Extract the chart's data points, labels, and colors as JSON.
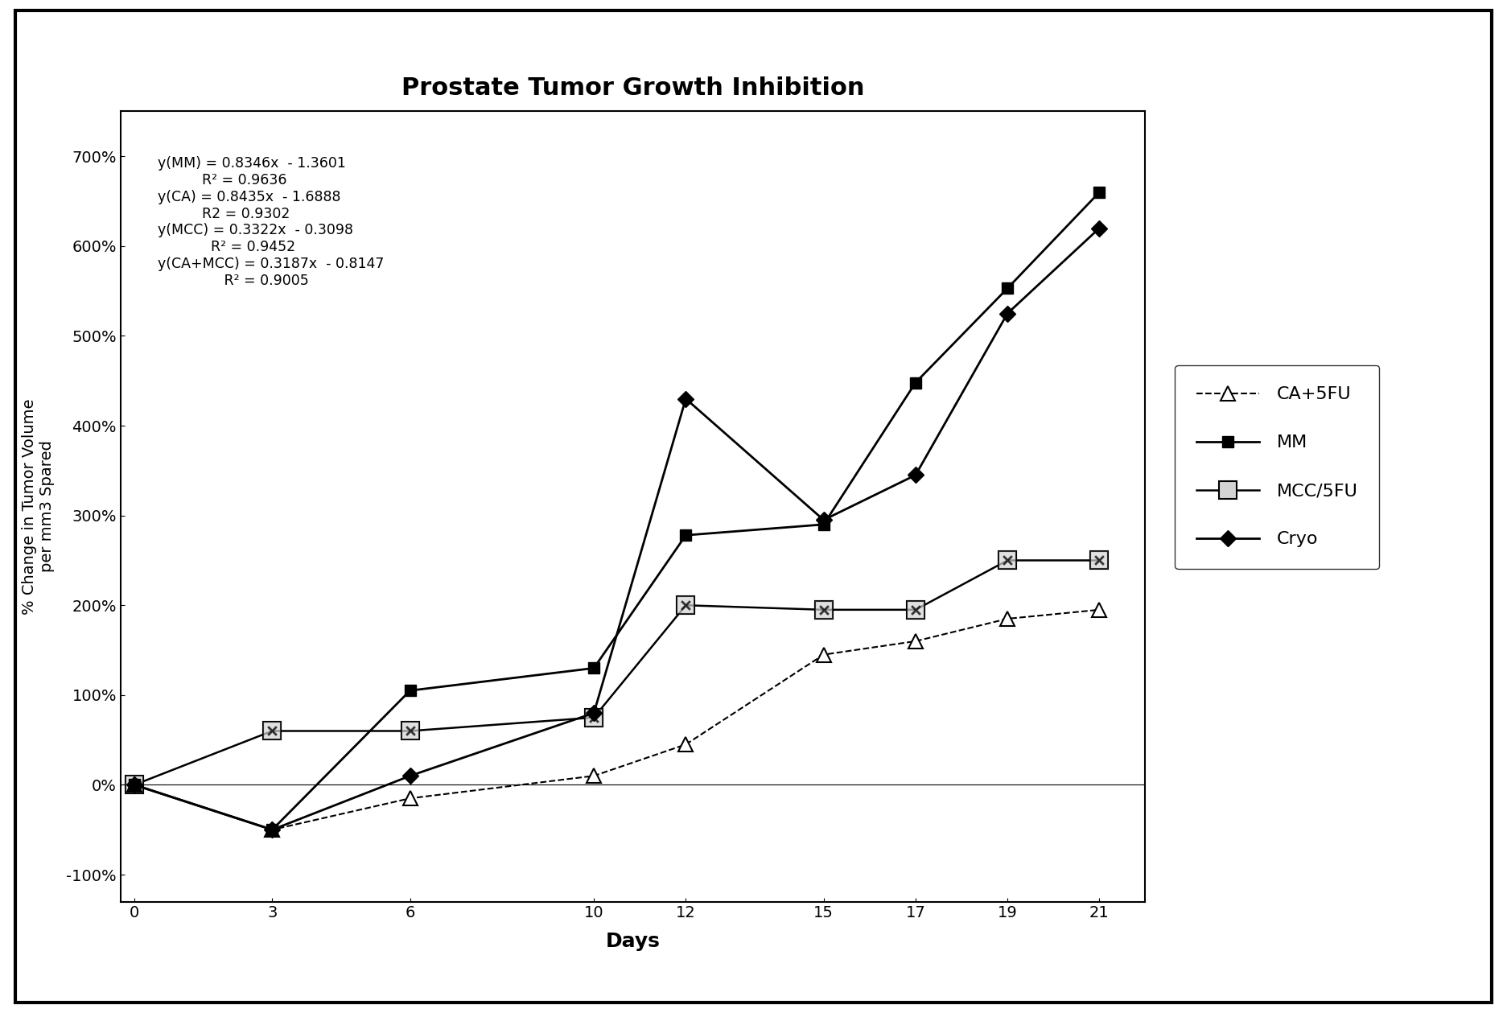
{
  "title": "Prostate Tumor Growth Inhibition",
  "xlabel": "Days",
  "ylabel": "% Change in Tumor Volume\nper mm3 Spared",
  "days": [
    0,
    3,
    6,
    10,
    12,
    15,
    17,
    19,
    21
  ],
  "MM": [
    0,
    -50,
    105,
    130,
    278,
    290,
    448,
    553,
    660
  ],
  "CA_5FU": [
    0,
    -50,
    -15,
    10,
    45,
    145,
    160,
    185,
    195
  ],
  "MCC_5FU": [
    0,
    60,
    60,
    75,
    200,
    195,
    195,
    250,
    250
  ],
  "Cryo": [
    0,
    -50,
    10,
    80,
    430,
    295,
    345,
    525,
    620
  ],
  "annotation_lines": [
    "y(MM) = 0.8346x  - 1.3601",
    "R² = 0.9636",
    "y(CA) = 0.8435x  - 1.6888",
    "R2 = 0.9302",
    "y(MCC) = 0.3322x  - 0.3098",
    "R² = 0.9452",
    "y(CA+MCC) = 0.3187x  - 0.8147",
    "R² = 0.9005"
  ],
  "yticks": [
    -100,
    0,
    100,
    200,
    300,
    400,
    500,
    600,
    700
  ],
  "xticks": [
    0,
    3,
    6,
    10,
    12,
    15,
    17,
    19,
    21
  ],
  "xlim": [
    -0.3,
    22
  ],
  "ylim": [
    -130,
    750
  ],
  "background_color": "#ffffff"
}
